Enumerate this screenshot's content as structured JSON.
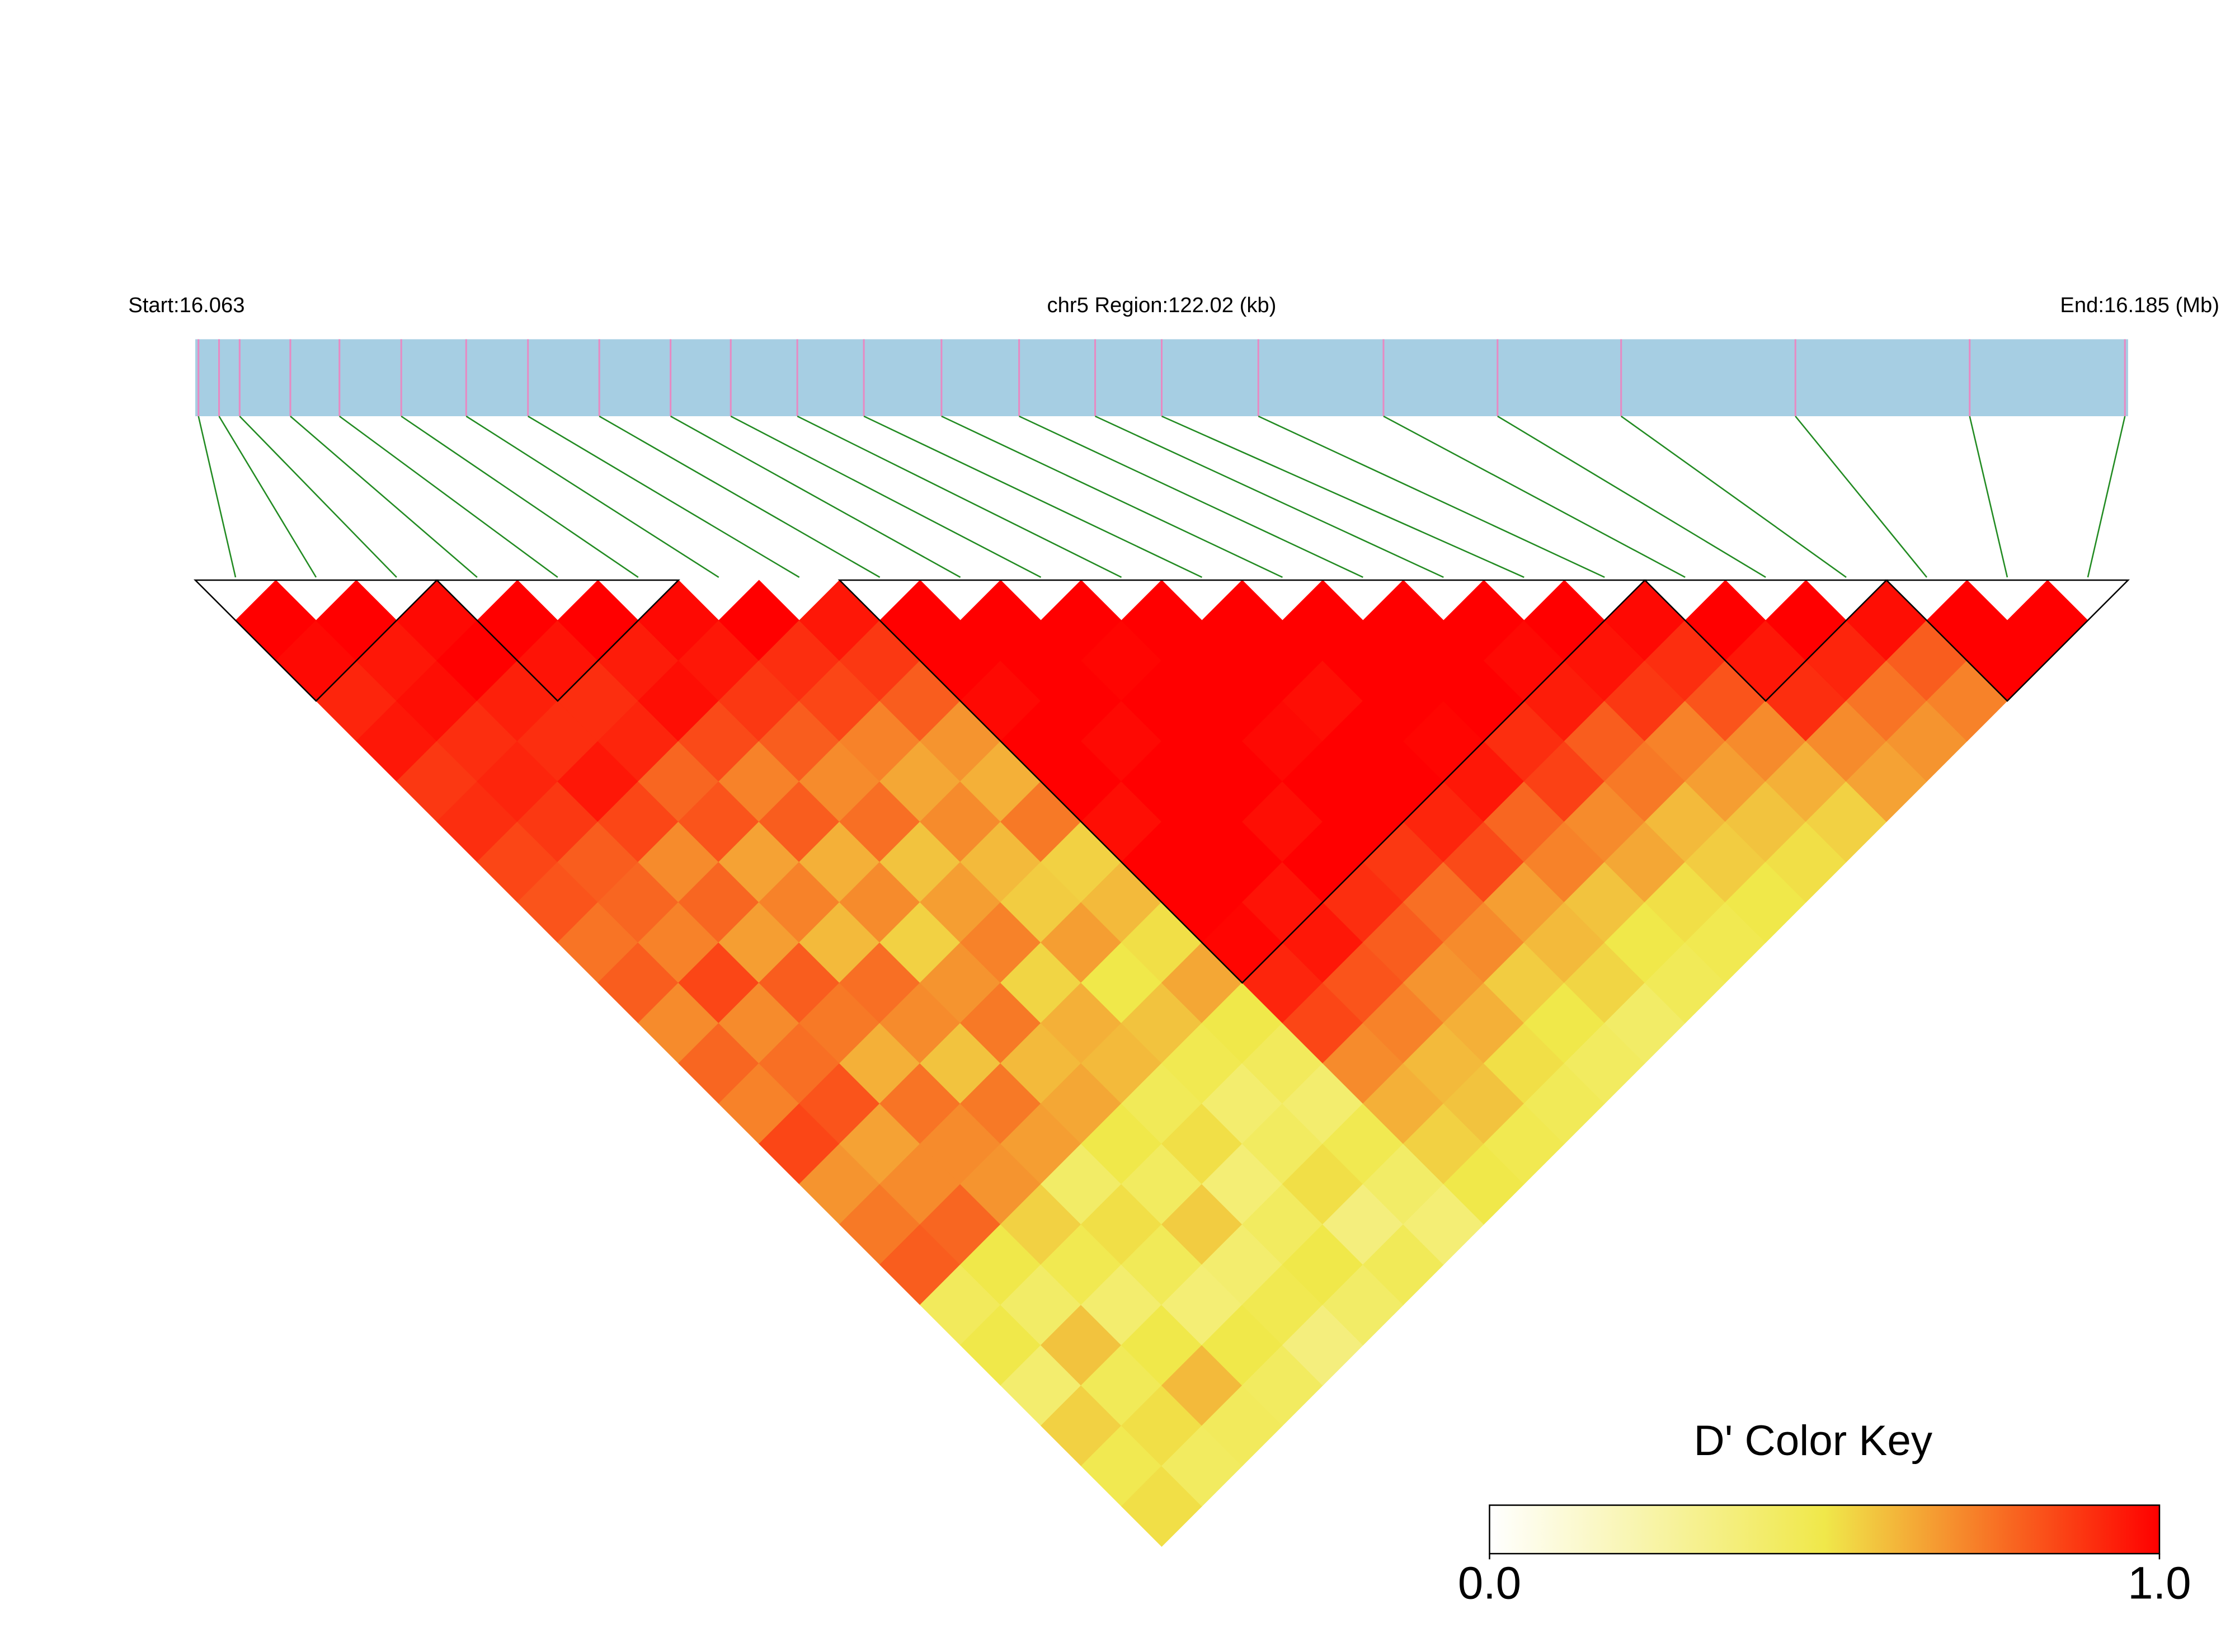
{
  "chart_data": {
    "type": "ld_heatmap",
    "start_label": "Start:16.063",
    "region_label": "chr5 Region:122.02 (kb)",
    "end_label": "End:16.185 (Mb)",
    "xlim": [
      16.063,
      16.185
    ],
    "snp_positions": [
      16.0632,
      16.0645,
      16.0658,
      16.069,
      16.0721,
      16.076,
      16.0801,
      16.084,
      16.0885,
      16.093,
      16.0968,
      16.101,
      16.1052,
      16.1101,
      16.115,
      16.1198,
      16.124,
      16.1301,
      16.138,
      16.1452,
      16.153,
      16.164,
      16.175,
      16.1848
    ],
    "matrix": [
      [
        1,
        0.98,
        0.92,
        0.95,
        0.88,
        0.9,
        0.85,
        0.82,
        0.75,
        0.8,
        0.7,
        0.78,
        0.72,
        0.85,
        0.68,
        0.74,
        0.8,
        0.45,
        0.5,
        0.4,
        0.55,
        0.48,
        0.52
      ],
      [
        1,
        0.95,
        0.97,
        0.9,
        0.92,
        0.88,
        0.8,
        0.78,
        0.72,
        0.85,
        0.7,
        0.76,
        0.82,
        0.65,
        0.7,
        0.78,
        0.5,
        0.42,
        0.58,
        0.46,
        0.52,
        0.44
      ],
      [
        0.98,
        1,
        0.93,
        0.9,
        0.95,
        0.85,
        0.7,
        0.78,
        0.66,
        0.8,
        0.74,
        0.62,
        0.75,
        0.7,
        0.68,
        0.55,
        0.48,
        0.4,
        0.5,
        0.6,
        0.45
      ],
      [
        1,
        0.96,
        0.9,
        0.92,
        0.78,
        0.82,
        0.65,
        0.72,
        0.6,
        0.76,
        0.7,
        0.58,
        0.74,
        0.66,
        0.42,
        0.52,
        0.46,
        0.38,
        0.5,
        0.44
      ],
      [
        1,
        0.94,
        0.97,
        0.84,
        0.72,
        0.8,
        0.62,
        0.7,
        0.55,
        0.68,
        0.74,
        0.6,
        0.64,
        0.5,
        0.44,
        0.56,
        0.4,
        0.48,
        0.36
      ],
      [
        0.98,
        0.95,
        0.88,
        0.8,
        0.7,
        0.76,
        0.58,
        0.66,
        0.72,
        0.54,
        0.62,
        0.6,
        0.46,
        0.52,
        0.38,
        0.44,
        0.5,
        0.42
      ],
      [
        1,
        0.9,
        0.85,
        0.72,
        0.64,
        0.7,
        0.6,
        0.56,
        0.66,
        0.5,
        0.58,
        0.48,
        0.4,
        0.44,
        0.52,
        0.36,
        0.46
      ],
      [
        0.95,
        0.88,
        0.8,
        0.68,
        0.62,
        0.74,
        0.55,
        0.6,
        0.52,
        0.64,
        0.5,
        0.45,
        0.4,
        0.48,
        0.42,
        0.38
      ],
      [
        1,
        1,
        0.98,
        1,
        1,
        0.97,
        1,
        1,
        0.99,
        0.92,
        0.85,
        0.7,
        0.62,
        0.55,
        0.5
      ],
      [
        1,
        1,
        1,
        0.98,
        1,
        1,
        1,
        0.96,
        0.95,
        0.82,
        0.72,
        0.6,
        0.58,
        0.48
      ],
      [
        1,
        0.99,
        1,
        1,
        1,
        0.97,
        1,
        0.9,
        0.8,
        0.68,
        0.62,
        0.52,
        0.46
      ],
      [
        1,
        1,
        1,
        0.98,
        1,
        1,
        0.88,
        0.76,
        0.7,
        0.56,
        0.5,
        0.44
      ],
      [
        1,
        1,
        0.97,
        1,
        1,
        0.92,
        0.84,
        0.66,
        0.6,
        0.54,
        0.42
      ],
      [
        1,
        1,
        1,
        0.99,
        0.95,
        0.78,
        0.72,
        0.58,
        0.5,
        0.46
      ],
      [
        1,
        1,
        1,
        0.9,
        0.86,
        0.7,
        0.64,
        0.52,
        0.48
      ],
      [
        1,
        0.98,
        0.94,
        0.8,
        0.74,
        0.6,
        0.56,
        0.5
      ],
      [
        1,
        0.96,
        0.88,
        0.72,
        0.66,
        0.58,
        0.52
      ],
      [
        0.98,
        0.9,
        0.82,
        0.7,
        0.62,
        0.55
      ],
      [
        1,
        0.95,
        0.9,
        0.7,
        0.65
      ],
      [
        1,
        0.92,
        0.75,
        0.68
      ],
      [
        0.97,
        0.8,
        0.72
      ],
      [
        1,
        1
      ],
      [
        1
      ]
    ],
    "blocks": [
      [
        0,
        2
      ],
      [
        3,
        5
      ],
      [
        8,
        17
      ],
      [
        18,
        20
      ],
      [
        21,
        23
      ]
    ],
    "colors": [
      "#ffffff",
      "#f0e84a",
      "#ff0000"
    ],
    "colorbar_title": "D' Color Key",
    "clim": [
      0,
      1
    ],
    "colorbar_ticks": [
      {
        "value": 0,
        "label": "0.0"
      },
      {
        "value": 1,
        "label": "1.0"
      }
    ]
  }
}
